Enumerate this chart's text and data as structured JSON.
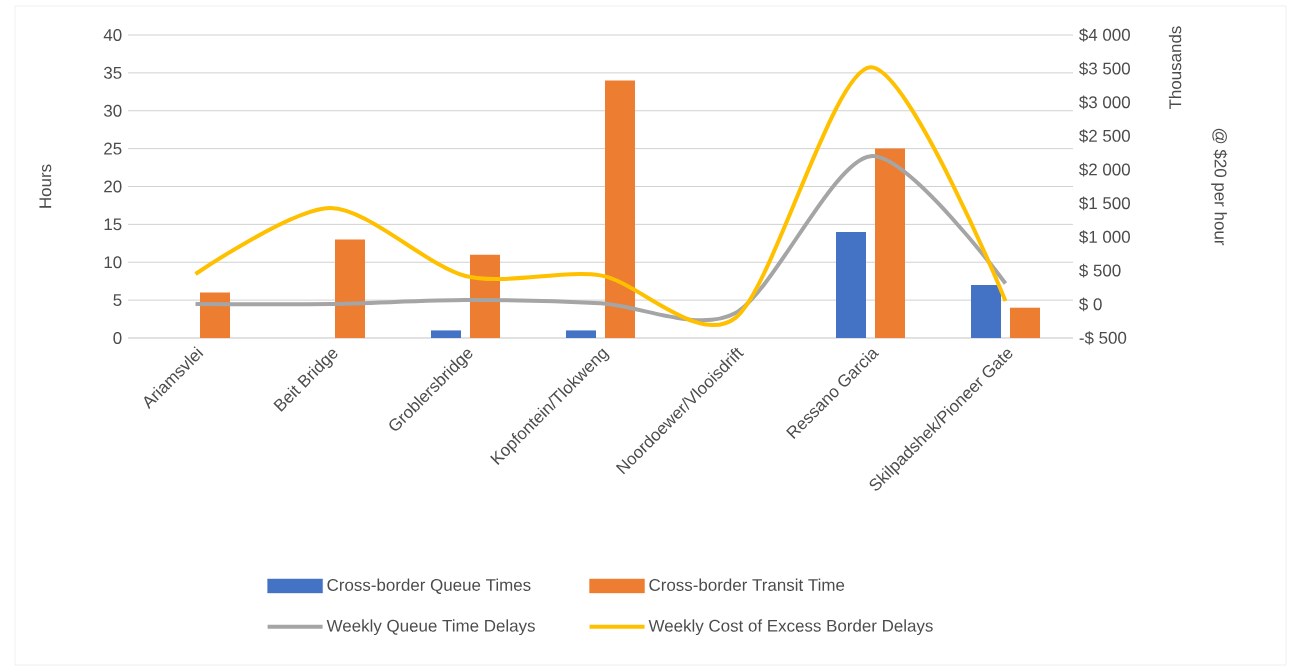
{
  "chart_data": {
    "type": "bar",
    "ylabel": "Hours",
    "y2label": "@ $20 per hour",
    "annotations": [
      "Thousands"
    ],
    "categories": [
      "Ariamsvlei",
      "Beit Bridge",
      "Groblersbridge",
      "Kopfontein/Tlokweng",
      "Noordoewer/Vlooisdrift",
      "Ressano Garcia",
      "Skilpadshek/Pioneer Gate"
    ],
    "series": [
      {
        "name": "Cross-border Queue Times",
        "color": "#4472c4",
        "values": [
          0,
          0,
          1,
          1,
          0,
          14,
          7
        ]
      },
      {
        "name": "Cross-border Transit Time",
        "color": "#ed7d31",
        "values": [
          6,
          13,
          11,
          34,
          0,
          25,
          4
        ]
      },
      {
        "name": "Weekly Queue Time Delays",
        "type": "line",
        "color": "#a5a5a5",
        "values": [
          4.5,
          4.5,
          5,
          4.6,
          3.3,
          24,
          7.2
        ]
      },
      {
        "name": "Weekly Cost of Excess Border Delays",
        "type": "line",
        "axis": "y2",
        "color": "#ffc000",
        "values": [
          450,
          1430,
          420,
          430,
          -200,
          3520,
          50
        ]
      }
    ],
    "ylim": [
      0,
      40
    ],
    "yticks": [
      0,
      5,
      10,
      15,
      20,
      25,
      30,
      35,
      40
    ],
    "y2lim": [
      -500,
      4000
    ],
    "y2ticks": [
      {
        "value": -500,
        "label": "-$ 500"
      },
      {
        "value": 0,
        "label": "$ 0"
      },
      {
        "value": 500,
        "label": "$ 500"
      },
      {
        "value": 1000,
        "label": "$1 000"
      },
      {
        "value": 1500,
        "label": "$1 500"
      },
      {
        "value": 2000,
        "label": "$2 000"
      },
      {
        "value": 2500,
        "label": "$2 500"
      },
      {
        "value": 3000,
        "label": "$3 000"
      },
      {
        "value": 3500,
        "label": "$3 500"
      },
      {
        "value": 4000,
        "label": "$4 000"
      }
    ],
    "grid": "y",
    "legend": "bottom",
    "marker": "none",
    "line_style": "solid"
  }
}
